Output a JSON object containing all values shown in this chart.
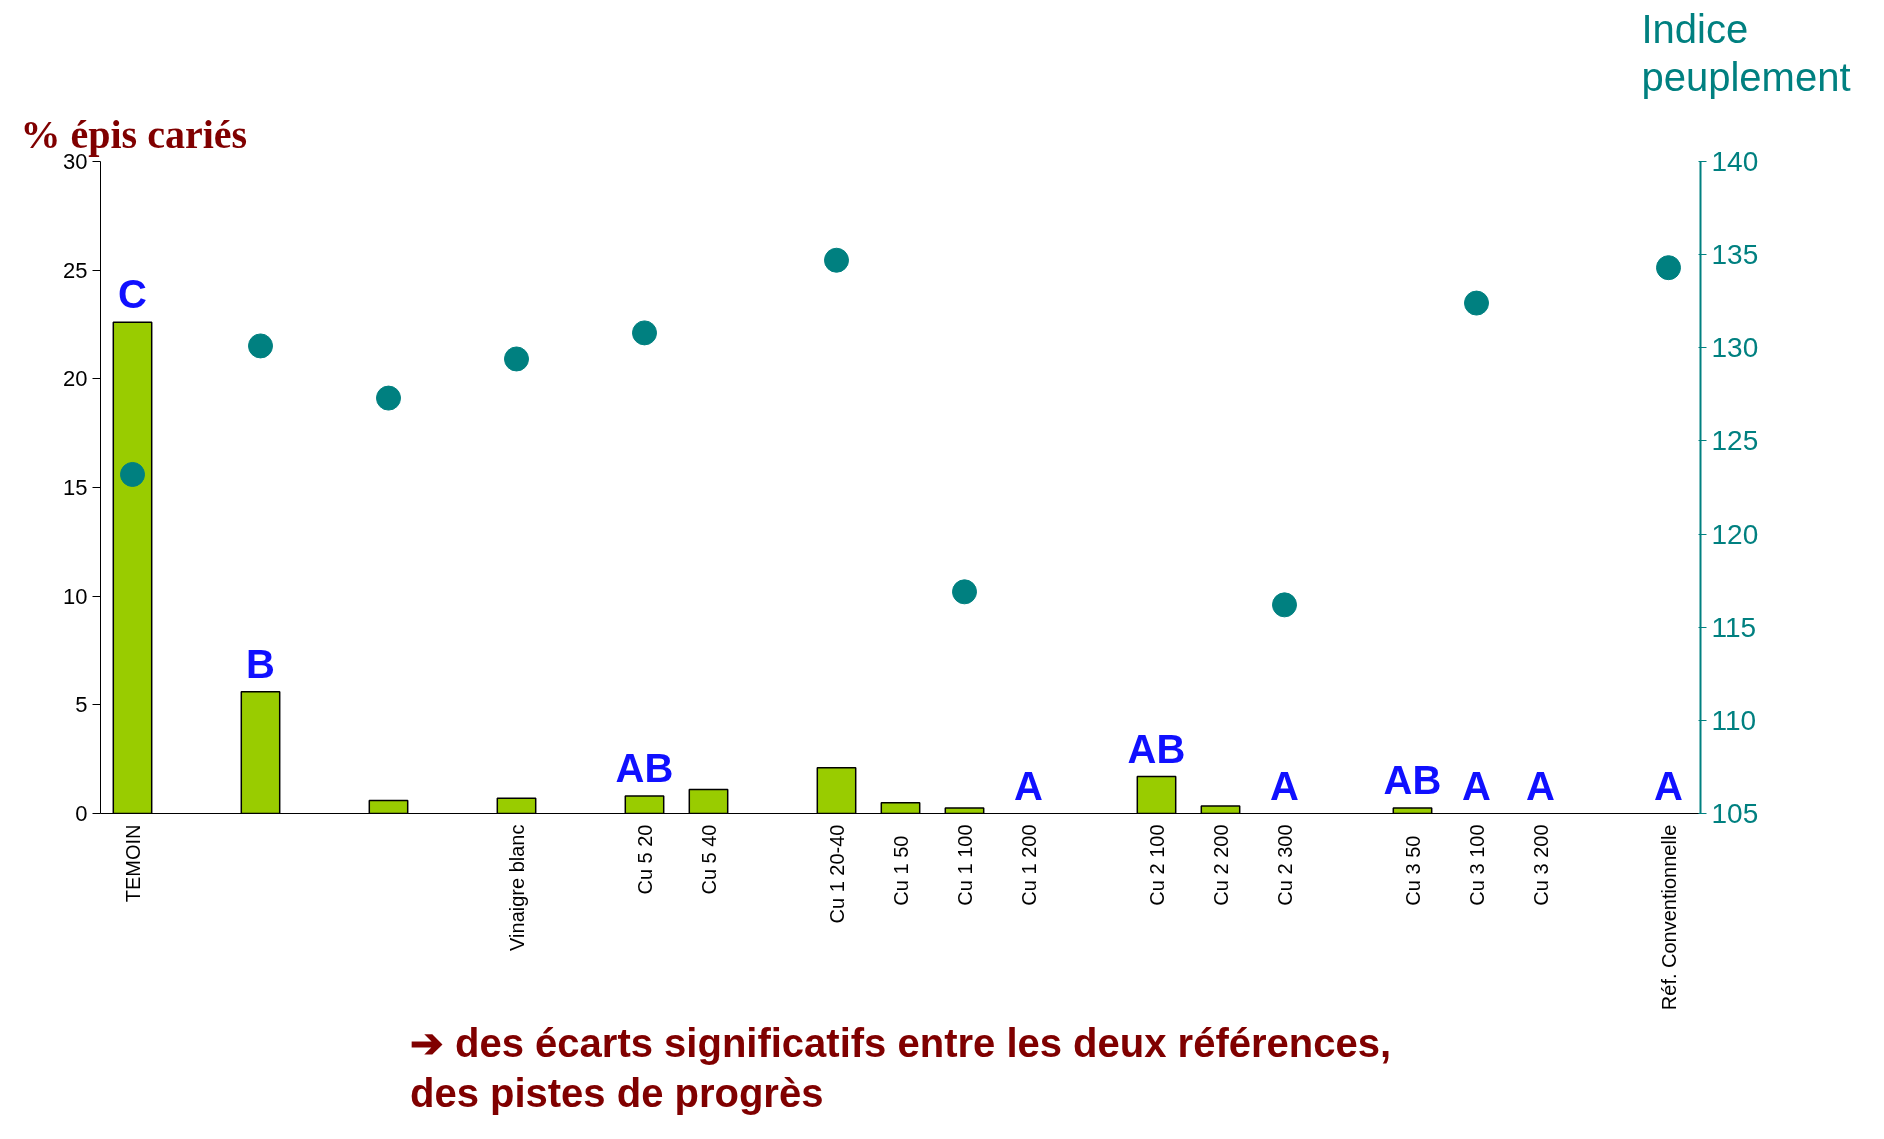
{
  "chart_data": {
    "type": "bar",
    "ylabel": "% épis cariés",
    "y2label": "Indice peuplement",
    "categories": [
      "TEMOIN",
      null,
      null,
      null,
      null,
      null,
      "Vinaigre blanc",
      null,
      "Cu 5 20",
      "Cu 5 40",
      null,
      "Cu 1 20-40",
      "Cu 1   50",
      "Cu 1 100",
      "Cu 1 200",
      null,
      "Cu 2 100",
      "Cu 2 200",
      "Cu 2 300",
      null,
      "Cu 3   50",
      "Cu 3 100",
      "Cu 3 200",
      null,
      "Réf. Conventionnelle"
    ],
    "series": [
      {
        "color": "#99cc00",
        "values": [
          22.6,
          null,
          5.6,
          null,
          0.6,
          null,
          0.7,
          null,
          0.8,
          1.1,
          null,
          2.1,
          0.5,
          0.25,
          null,
          null,
          1.7,
          0.35,
          null,
          null,
          0.25,
          null,
          null,
          null,
          null
        ],
        "value_labels": [
          "C",
          null,
          "B",
          null,
          null,
          null,
          null,
          null,
          "AB",
          null,
          null,
          null,
          null,
          null,
          "A",
          null,
          "AB",
          null,
          "A",
          null,
          "AB",
          "A",
          "A",
          null,
          "A"
        ]
      },
      {
        "type": "scatter",
        "axis": "y2",
        "color": "#008080",
        "values": [
          123.2,
          null,
          130.1,
          null,
          127.3,
          null,
          129.4,
          null,
          130.8,
          null,
          null,
          134.7,
          null,
          116.9,
          null,
          null,
          null,
          null,
          116.2,
          null,
          null,
          132.4,
          null,
          null,
          134.3
        ]
      }
    ],
    "ylim": [
      0,
      30
    ],
    "yticks": [
      0,
      5,
      10,
      15,
      20,
      25,
      30
    ],
    "y2lim": [
      105,
      140
    ],
    "y2ticks": [
      105,
      110,
      115,
      120,
      125,
      130,
      135,
      140
    ],
    "marker": "circle",
    "grid": false,
    "annotations": [
      "➔ des écarts significatifs entre les deux références,\ndes pistes de progrès"
    ]
  }
}
